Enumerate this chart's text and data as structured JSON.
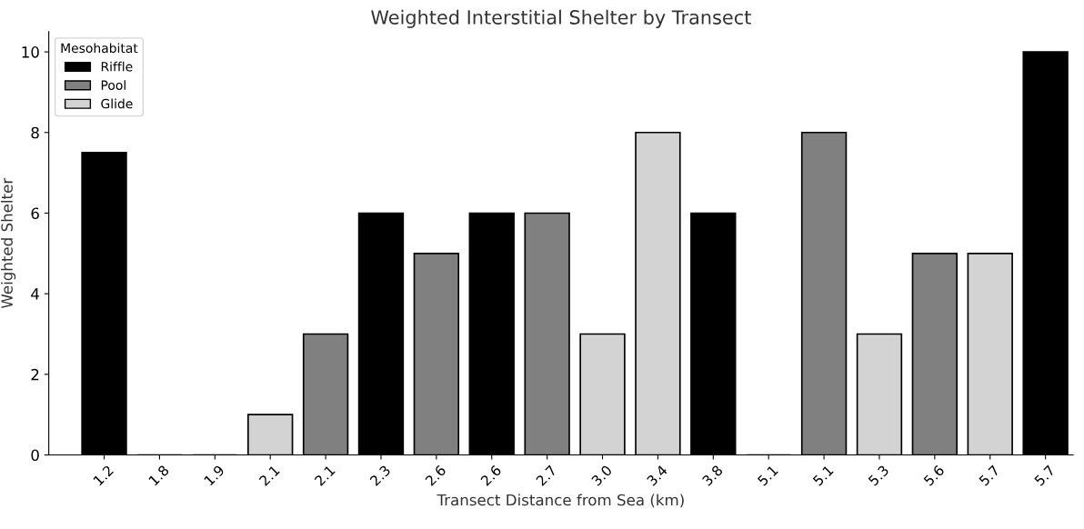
{
  "chart_data": {
    "type": "bar",
    "title": "Weighted Interstitial Shelter by Transect",
    "xlabel": "Transect Distance from Sea (km)",
    "ylabel": "Weighted Shelter",
    "legend_title": "Mesohabitat",
    "legend": "top left",
    "grid": false,
    "categories": [
      "1.2",
      "1.8",
      "1.9",
      "2.1",
      "2.1",
      "2.3",
      "2.6",
      "2.6",
      "2.7",
      "3.0",
      "3.4",
      "3.8",
      "5.1",
      "5.1",
      "5.3",
      "5.6",
      "5.7",
      "5.7"
    ],
    "series": [
      {
        "name": "Riffle",
        "color": "#000000",
        "values": [
          7.5,
          0,
          0,
          null,
          null,
          6,
          null,
          6,
          null,
          null,
          null,
          6,
          0,
          null,
          null,
          null,
          null,
          10
        ]
      },
      {
        "name": "Pool",
        "color": "#808080",
        "values": [
          null,
          null,
          null,
          null,
          3,
          null,
          5,
          null,
          6,
          null,
          null,
          null,
          null,
          8,
          null,
          5,
          null,
          null
        ]
      },
      {
        "name": "Glide",
        "color": "#d3d3d3",
        "values": [
          null,
          null,
          null,
          1,
          null,
          null,
          null,
          null,
          null,
          3,
          8,
          null,
          null,
          null,
          3,
          null,
          5,
          null
        ]
      }
    ],
    "ylim": [
      0,
      10.5
    ],
    "yticks": [
      0,
      2,
      4,
      6,
      8,
      10
    ]
  }
}
